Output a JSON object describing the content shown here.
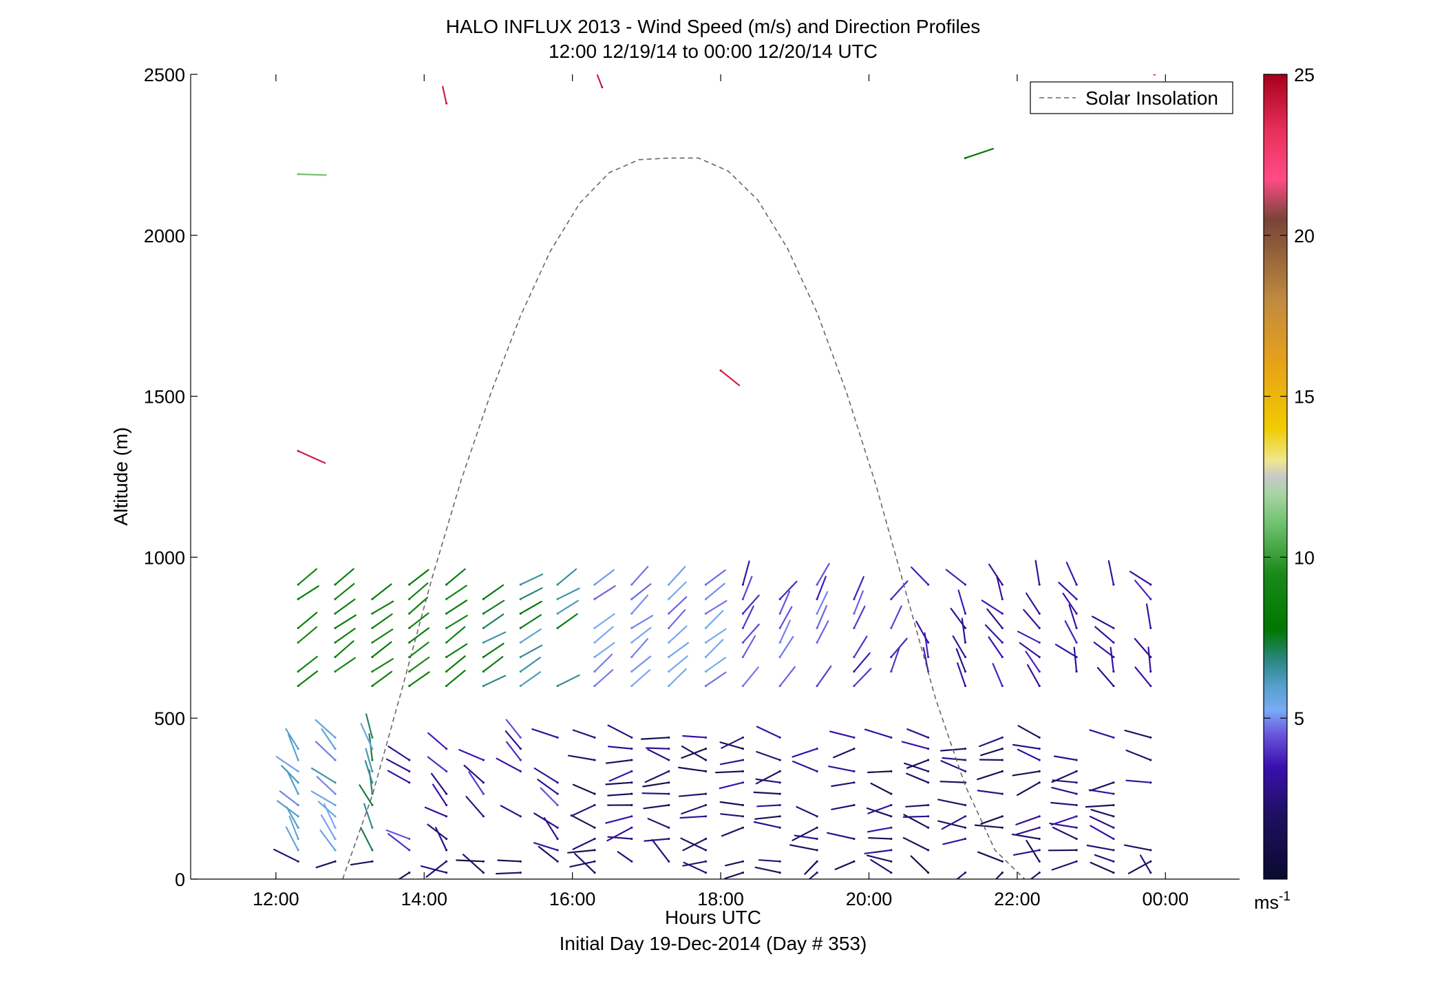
{
  "chart_data": {
    "type": "quiver",
    "title": "HALO INFLUX 2013 - Wind Speed (m/s) and Direction Profiles",
    "subtitle": "12:00 12/19/14 to 00:00 12/20/14  UTC",
    "xlabel": "Hours UTC",
    "xlabel2": "Initial Day 19-Dec-2014 (Day # 353)",
    "ylabel": "Altitude (m)",
    "xlim": [
      10.85,
      25.0
    ],
    "ylim": [
      0,
      2500
    ],
    "x_ticks": [
      12,
      14,
      16,
      18,
      20,
      22,
      24
    ],
    "x_tick_labels": [
      "12:00",
      "14:00",
      "16:00",
      "18:00",
      "20:00",
      "22:00",
      "00:00"
    ],
    "y_ticks": [
      0,
      500,
      1000,
      1500,
      2000,
      2500
    ],
    "y_tick_labels": [
      "0",
      "500",
      "1000",
      "1500",
      "2000",
      "2500"
    ],
    "colorbar": {
      "min": 0,
      "max": 25,
      "ticks": [
        5,
        10,
        15,
        20,
        25
      ],
      "tick_labels": [
        "5",
        "10",
        "15",
        "20",
        "25"
      ],
      "unit_label": "ms",
      "unit_exponent": "-1"
    },
    "legend": {
      "position": "top-right",
      "entries": [
        {
          "label": "Solar Insolation",
          "style": "dashed",
          "color": "#666666"
        }
      ]
    },
    "solar_insolation": {
      "x": [
        12.9,
        13.3,
        13.7,
        14.1,
        14.5,
        14.9,
        15.3,
        15.7,
        16.1,
        16.5,
        16.9,
        17.3,
        17.7,
        18.1,
        18.5,
        18.9,
        19.3,
        19.7,
        20.1,
        20.5,
        20.9,
        21.3,
        21.7,
        22.1
      ],
      "y": [
        0,
        260,
        590,
        930,
        1240,
        1510,
        1750,
        1950,
        2100,
        2195,
        2235,
        2240,
        2240,
        2200,
        2110,
        1960,
        1760,
        1510,
        1220,
        890,
        560,
        290,
        90,
        0
      ]
    },
    "upper_vectors": [
      {
        "x": 12.3,
        "y": 2190,
        "u": 3.0,
        "v": -0.1,
        "s": 11
      },
      {
        "x": 12.3,
        "y": 1330,
        "u": 2.9,
        "v": -1.3,
        "s": 24
      },
      {
        "x": 14.3,
        "y": 2410,
        "u": -0.4,
        "v": 1.8,
        "s": 24
      },
      {
        "x": 16.4,
        "y": 2460,
        "u": -0.5,
        "v": 1.3,
        "s": 24
      },
      {
        "x": 18.0,
        "y": 1580,
        "u": 2.0,
        "v": -1.6,
        "s": 24
      },
      {
        "x": 21.3,
        "y": 2240,
        "u": 3.0,
        "v": 1.0,
        "s": 8
      },
      {
        "x": 23.85,
        "y": 2500,
        "u": 0.1,
        "v": 0.0,
        "s": 24
      }
    ],
    "vector_fields": [
      {
        "band": "lower-profiles",
        "x_range": [
          12.3,
          23.8
        ],
        "y_range": [
          0,
          480
        ],
        "speed_range": [
          1,
          6
        ]
      },
      {
        "band": "mid-profiles",
        "x_range": [
          12.3,
          23.8
        ],
        "y_range": [
          580,
          960
        ],
        "speed_range": [
          2,
          9
        ]
      }
    ]
  }
}
